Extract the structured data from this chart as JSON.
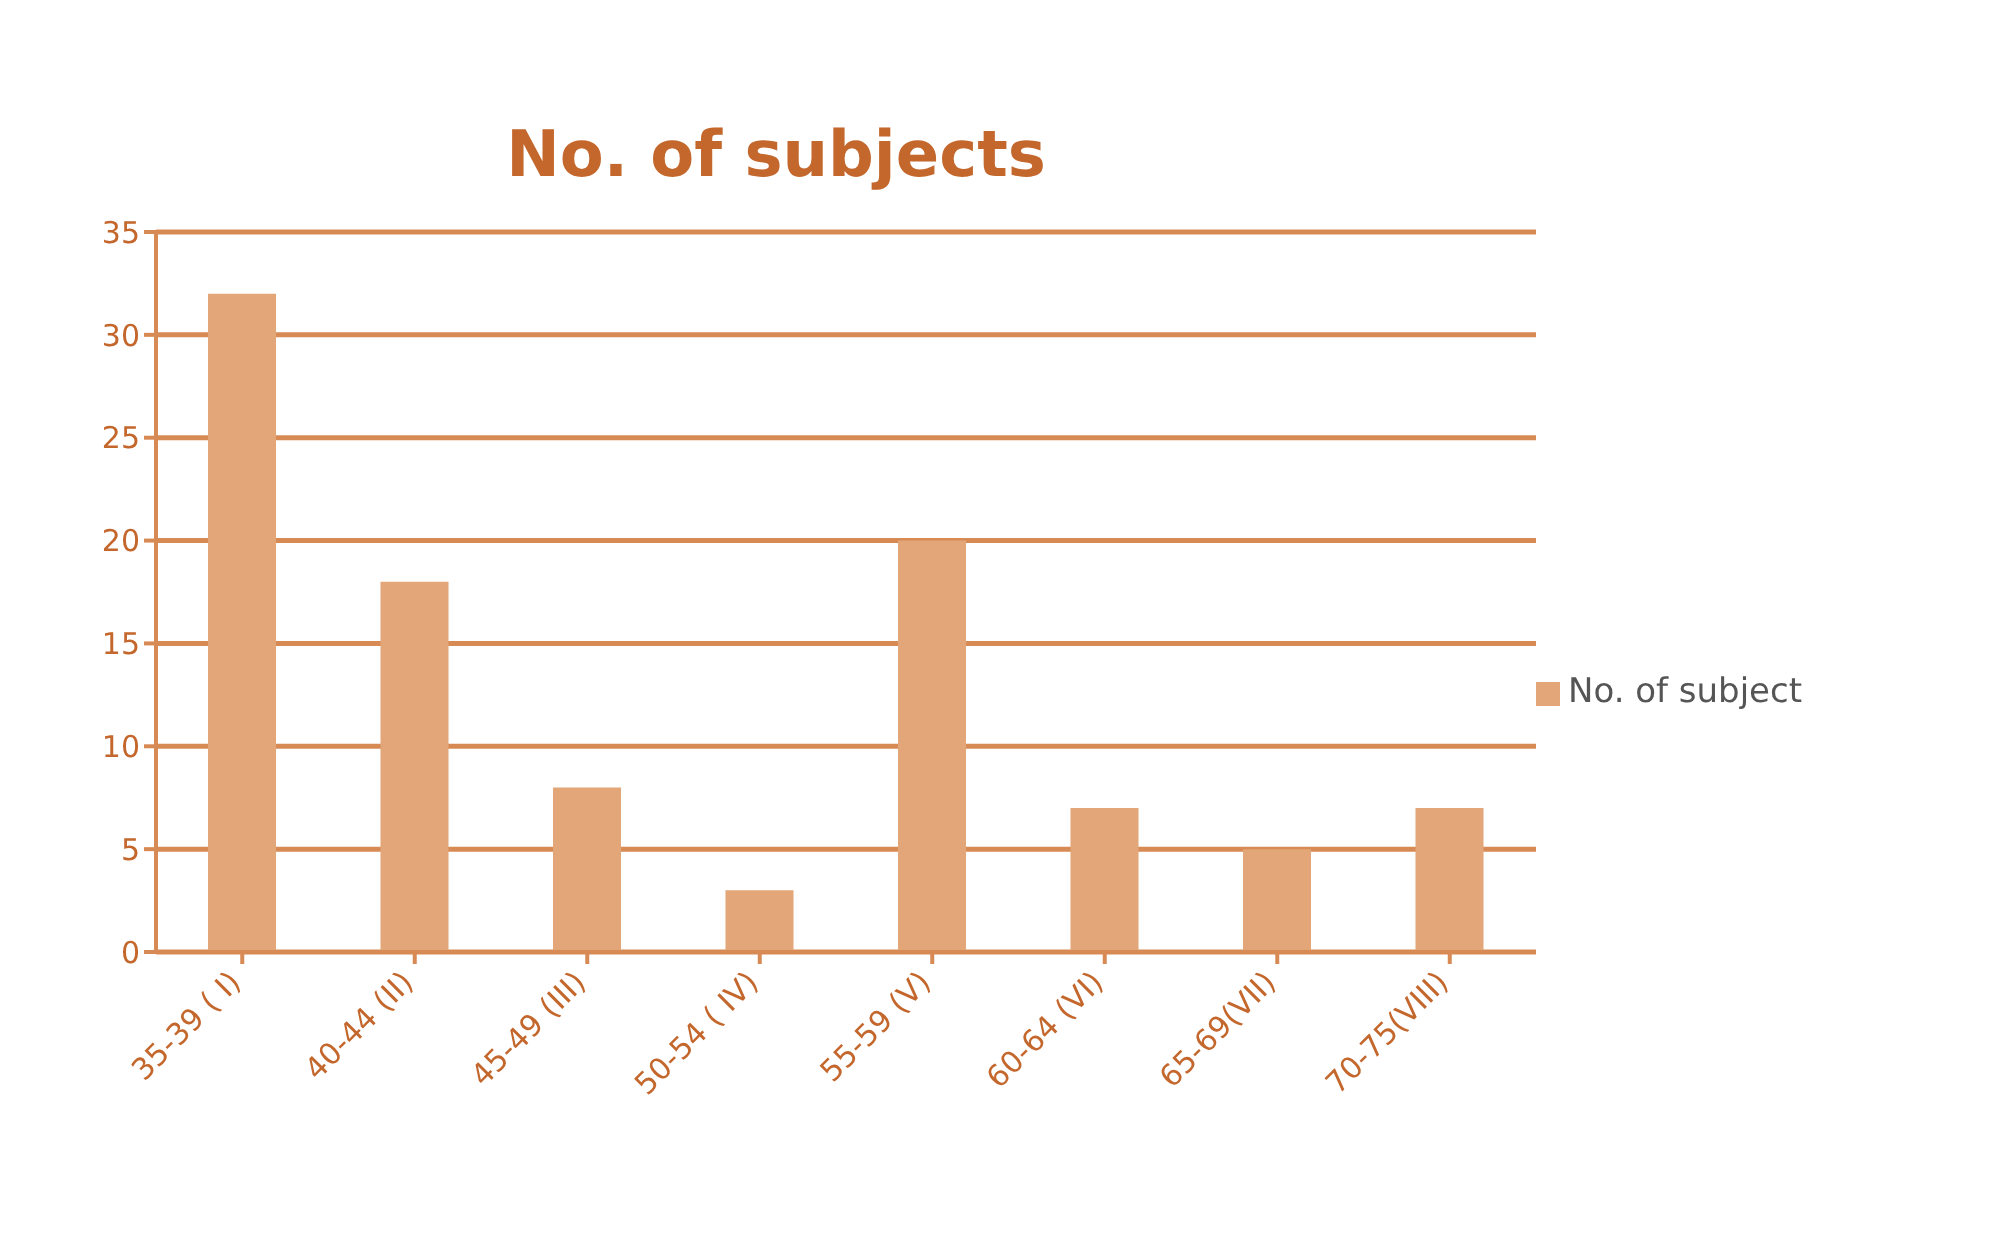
{
  "chart_data": {
    "type": "bar",
    "title": "No. of subjects",
    "categories": [
      "35-39 ( I)",
      "40-44 (II)",
      "45-49 (III)",
      "50-54 ( IV)",
      "55-59 (V)",
      "60-64 (VI)",
      "65-69(VII)",
      "70-75(VIII)"
    ],
    "series": [
      {
        "name": "No. of subject",
        "color": "#e2a679",
        "values": [
          32,
          18,
          8,
          3,
          20,
          7,
          5,
          7
        ]
      }
    ],
    "ylim": [
      0,
      35
    ],
    "yticks": [
      0,
      5,
      10,
      15,
      20,
      25,
      30,
      35
    ],
    "grid": "y",
    "legend": "right"
  }
}
